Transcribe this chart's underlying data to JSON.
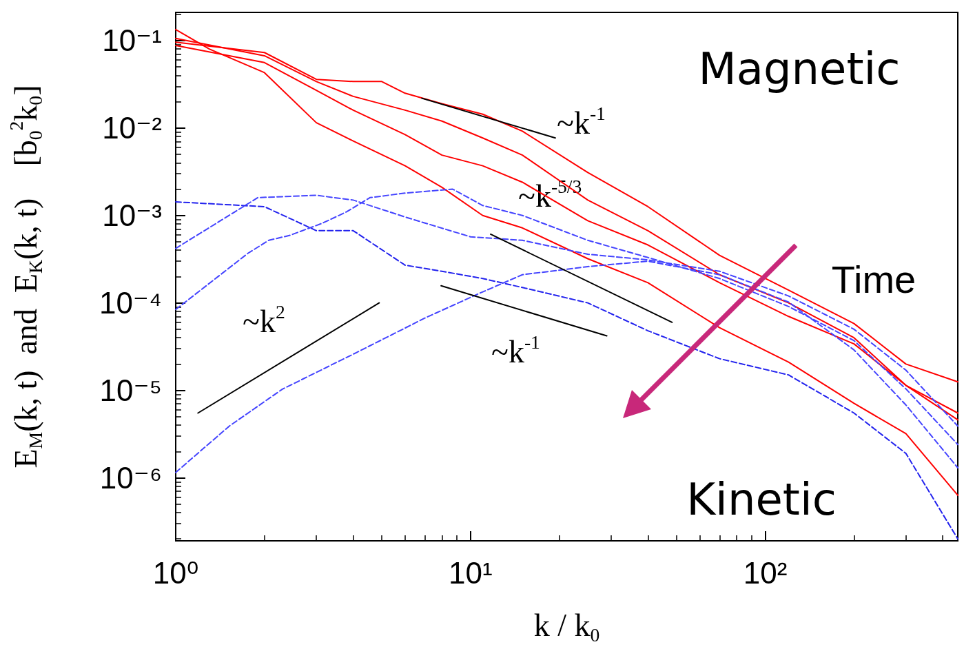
{
  "chart_data": {
    "type": "line",
    "xlabel": "k / k$_{0}$",
    "ylabel": "E$_{M}$(k, t)  and  E$_{K}$(k, t)    [b$_{0}$$^{2}$k$_{0}$]",
    "log": "xy",
    "grid": false,
    "marker": "none",
    "xlim": [
      1,
      450
    ],
    "ylim": [
      1.9e-07,
      0.21
    ],
    "xticks": [
      {
        "value": 1,
        "label": "10⁰"
      },
      {
        "value": 10,
        "label": "10¹"
      },
      {
        "value": 100,
        "label": "10²"
      }
    ],
    "yticks": [
      {
        "value": 0.1,
        "label": "10⁻¹"
      },
      {
        "value": 0.01,
        "label": "10⁻²"
      },
      {
        "value": 0.001,
        "label": "10⁻³"
      },
      {
        "value": 0.0001,
        "label": "10⁻⁴"
      },
      {
        "value": 1e-05,
        "label": "10⁻⁵"
      },
      {
        "value": 1e-06,
        "label": "10⁻⁶"
      }
    ],
    "series": [
      {
        "color": "#ff0000",
        "line_style": "solid",
        "x": [
          1,
          1.3,
          2,
          3,
          4,
          6,
          8,
          11,
          15,
          25,
          40,
          70,
          120,
          200,
          300,
          450
        ],
        "values": [
          0.134,
          0.08,
          0.043,
          0.0115,
          0.0071,
          0.0037,
          0.0021,
          0.001,
          0.00072,
          0.00032,
          0.00017,
          5.2e-05,
          2.1e-05,
          7.1e-06,
          3.2e-06,
          6.3e-07
        ]
      },
      {
        "color": "#ff0000",
        "line_style": "solid",
        "x": [
          1,
          2,
          3,
          4,
          5,
          6,
          8,
          11,
          15,
          25,
          40,
          70,
          120,
          200,
          300,
          450
        ],
        "values": [
          0.096,
          0.073,
          0.036,
          0.034,
          0.034,
          0.025,
          0.019,
          0.0144,
          0.0092,
          0.0031,
          0.00126,
          0.00035,
          0.00014,
          5.8e-05,
          2e-05,
          1.25e-05
        ]
      },
      {
        "color": "#ff0000",
        "line_style": "solid",
        "x": [
          1,
          2,
          3,
          4,
          6,
          8,
          11,
          15,
          25,
          40,
          70,
          120,
          200,
          300,
          450
        ],
        "values": [
          0.106,
          0.067,
          0.034,
          0.023,
          0.016,
          0.012,
          0.0077,
          0.0049,
          0.0015,
          0.00067,
          0.00021,
          0.0001,
          4e-05,
          1.14e-05,
          5.5e-06
        ]
      },
      {
        "color": "#ff0000",
        "line_style": "solid",
        "x": [
          1,
          2,
          3,
          4,
          6,
          8,
          11,
          15,
          25,
          40,
          70,
          120,
          200,
          300,
          450
        ],
        "values": [
          0.088,
          0.056,
          0.027,
          0.016,
          0.0084,
          0.0049,
          0.0037,
          0.0024,
          0.00087,
          0.00046,
          0.00017,
          7e-05,
          3.4e-05,
          1.14e-05,
          4.6e-06
        ]
      },
      {
        "color": "#2222ee",
        "line_style": "dashed",
        "x": [
          1,
          2,
          3,
          4,
          6,
          8,
          11,
          15,
          25,
          40,
          70,
          120,
          200,
          300,
          450
        ],
        "values": [
          0.00143,
          0.00126,
          0.00067,
          0.00067,
          0.00027,
          0.00023,
          0.00019,
          0.00015,
          0.0001,
          4.8e-05,
          2.3e-05,
          1.5e-05,
          5.5e-06,
          1.9e-06,
          2e-07
        ]
      },
      {
        "color": "#4444ff",
        "line_style": "dashed",
        "x": [
          1,
          1.9,
          3,
          4,
          6,
          10,
          15,
          25,
          40,
          70,
          120,
          200,
          300,
          450
        ],
        "values": [
          0.00042,
          0.0016,
          0.0017,
          0.0015,
          0.00096,
          0.00057,
          0.00052,
          0.00036,
          0.00031,
          0.00023,
          0.00012,
          5e-05,
          1.7e-05,
          3.9e-06
        ]
      },
      {
        "color": "#4444ff",
        "line_style": "dashed",
        "x": [
          1,
          1.76,
          2.07,
          2.43,
          3.13,
          3.8,
          4.56,
          6,
          8.7,
          11,
          15,
          25,
          40,
          70,
          120,
          200,
          300,
          450
        ],
        "values": [
          8.4e-05,
          0.00037,
          0.00052,
          0.00059,
          0.00081,
          0.0011,
          0.0016,
          0.0018,
          0.002,
          0.0013,
          0.001,
          0.00052,
          0.00033,
          0.00019,
          9.1e-05,
          3.7e-05,
          1.04e-05,
          2.4e-06
        ]
      },
      {
        "color": "#4444ff",
        "line_style": "dashed",
        "x": [
          1,
          1.52,
          2.3,
          4.1,
          7,
          10.8,
          15,
          25,
          40,
          70,
          120,
          200,
          300,
          450
        ],
        "values": [
          1.15e-06,
          3.9e-06,
          1.03e-05,
          2.7e-05,
          6.7e-05,
          0.00013,
          0.00021,
          0.00026,
          0.0003,
          0.00021,
          0.000102,
          2.9e-05,
          6.8e-06,
          1.3e-06
        ]
      },
      {
        "color": "#000000",
        "line_style": "solid",
        "x": [
          6.84,
          19.4
        ],
        "values": [
          0.0219,
          0.0077
        ]
      },
      {
        "color": "#000000",
        "line_style": "solid",
        "x": [
          11.7,
          48.3
        ],
        "values": [
          0.00061,
          6e-05
        ]
      },
      {
        "color": "#000000",
        "line_style": "solid",
        "x": [
          7.95,
          29
        ],
        "values": [
          0.000157,
          4.2e-05
        ]
      },
      {
        "color": "#000000",
        "line_style": "solid",
        "x": [
          1.19,
          4.9
        ],
        "values": [
          5.5e-06,
          0.0001
        ]
      }
    ],
    "annotations": [
      "Magnetic",
      "Time",
      "Kinetic",
      "~k$^{-1}$",
      "~k$^{-5/3}$",
      "~k$^{-1}$",
      "~k$^{2}$"
    ]
  }
}
